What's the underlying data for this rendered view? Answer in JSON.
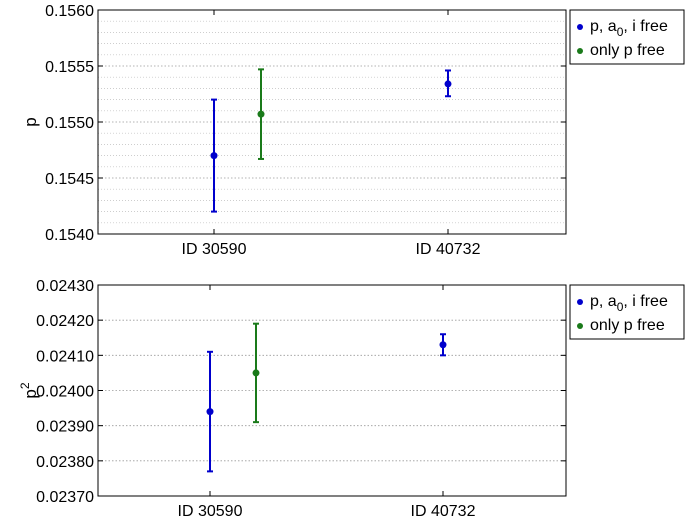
{
  "chart_data": [
    {
      "type": "scatter",
      "categories": [
        "ID 30590",
        "ID 40732"
      ],
      "ylabel": "p",
      "ylim": [
        0.154,
        0.156
      ],
      "yticks": [
        "0.1540",
        "0.1545",
        "0.1550",
        "0.1555",
        "0.1560"
      ],
      "y_tick_values": [
        0.154,
        0.1545,
        0.155,
        0.1555,
        0.156
      ],
      "grid": "y-major-and-minor, dotted",
      "legend_placement": "outside-right-top",
      "legend": [
        {
          "text": "p, a",
          "sub": "0",
          "tail": ", i free"
        },
        {
          "text": "only p free"
        }
      ],
      "series": [
        {
          "color": "#0000cc",
          "points": [
            {
              "category": "ID 30590",
              "y": 0.1547,
              "err_low": 0.1542,
              "err_high": 0.1552
            },
            {
              "category": "ID 40732",
              "y": 0.15534,
              "err_low": 0.15523,
              "err_high": 0.15546
            }
          ]
        },
        {
          "color": "#1a7a1a",
          "points": [
            {
              "category": "ID 30590",
              "y": 0.15507,
              "err_low": 0.15467,
              "err_high": 0.15547
            }
          ]
        }
      ]
    },
    {
      "type": "scatter",
      "categories": [
        "ID 30590",
        "ID 40732"
      ],
      "ylabel": "p",
      "ylabel_sup": "2",
      "ylim": [
        0.0237,
        0.0243
      ],
      "yticks": [
        "0.02370",
        "0.02380",
        "0.02390",
        "0.02400",
        "0.02410",
        "0.02420",
        "0.02430"
      ],
      "y_tick_values": [
        0.0237,
        0.0238,
        0.0239,
        0.024,
        0.0241,
        0.0242,
        0.0243
      ],
      "grid": "y-major, dotted",
      "legend_placement": "outside-right-top",
      "legend": [
        {
          "text": "p, a",
          "sub": "0",
          "tail": ", i free"
        },
        {
          "text": "only p free"
        }
      ],
      "series": [
        {
          "color": "#0000cc",
          "points": [
            {
              "category": "ID 30590",
              "y": 0.02394,
              "err_low": 0.02377,
              "err_high": 0.02411
            },
            {
              "category": "ID 40732",
              "y": 0.02413,
              "err_low": 0.0241,
              "err_high": 0.02416
            }
          ]
        },
        {
          "color": "#1a7a1a",
          "points": [
            {
              "category": "ID 30590",
              "y": 0.02405,
              "err_low": 0.02391,
              "err_high": 0.02419
            }
          ]
        }
      ]
    }
  ]
}
